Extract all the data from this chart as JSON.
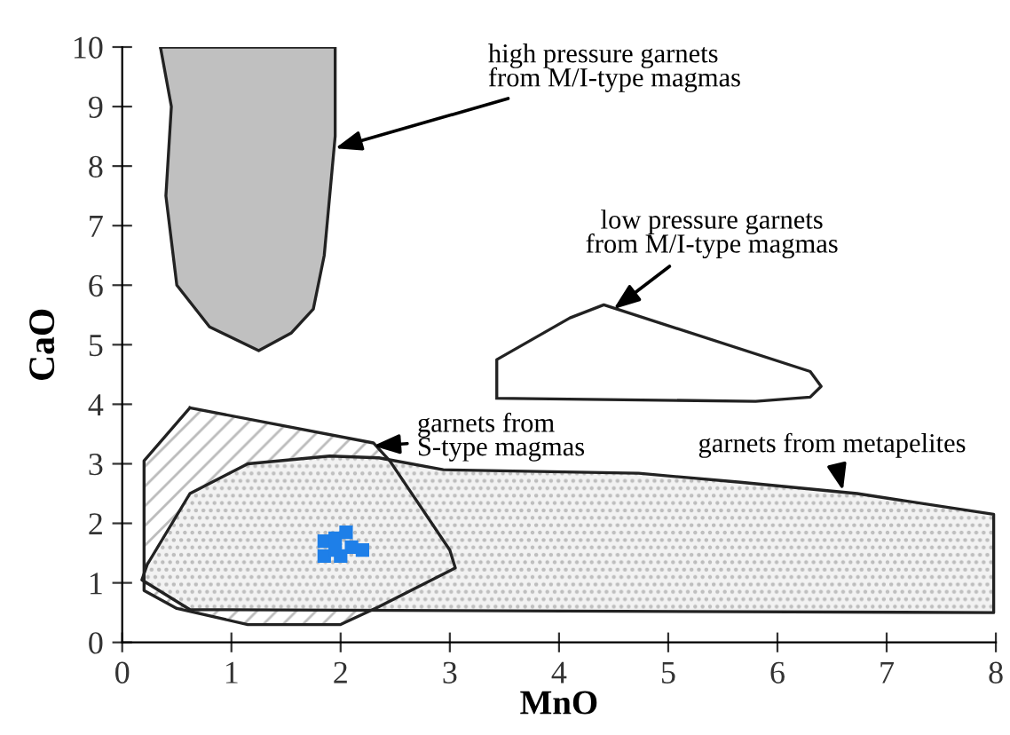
{
  "chart_data": {
    "type": "area",
    "xlabel": "MnO",
    "ylabel": "CaO",
    "xlim": [
      0,
      8
    ],
    "ylim": [
      0,
      10
    ],
    "xticks": [
      0,
      1,
      2,
      3,
      4,
      5,
      6,
      7,
      8
    ],
    "yticks": [
      0,
      1,
      2,
      3,
      4,
      5,
      6,
      7,
      8,
      9,
      10
    ],
    "grid": false,
    "legend": false,
    "series": [
      {
        "color": "#ffffff",
        "x": [
          0.62,
          0.2,
          0.2,
          0.5,
          1.15,
          2.0,
          2.35,
          3.05,
          3.0,
          2.45,
          2.3,
          0.62
        ],
        "values": [
          3.94,
          3.05,
          0.87,
          0.57,
          0.3,
          0.3,
          0.6,
          1.25,
          1.55,
          3.05,
          3.35,
          3.94
        ]
      },
      {
        "color": "#f2f2f2",
        "x": [
          0.23,
          0.62,
          1.15,
          1.9,
          2.35,
          2.94,
          4.73,
          5.66,
          6.73,
          7.98,
          7.98,
          0.62,
          0.18,
          0.23
        ],
        "values": [
          1.31,
          2.5,
          3.0,
          3.13,
          3.1,
          2.9,
          2.84,
          2.69,
          2.5,
          2.15,
          0.5,
          0.55,
          1.05,
          1.31
        ]
      },
      {
        "color": "#c0c0c0",
        "x": [
          0.35,
          1.95,
          1.95,
          1.85,
          1.75,
          1.55,
          1.25,
          0.8,
          0.5,
          0.4,
          0.45,
          0.35
        ],
        "values": [
          10,
          10,
          8.5,
          6.5,
          5.6,
          5.2,
          4.9,
          5.3,
          6,
          7.5,
          9,
          10
        ]
      },
      {
        "color": "#ffffff",
        "x": [
          3.43,
          3.43,
          4.1,
          4.41,
          6.3,
          6.4,
          6.3,
          5.8,
          3.43
        ],
        "values": [
          4.1,
          4.75,
          5.45,
          5.67,
          4.55,
          4.3,
          4.12,
          4.05,
          4.1
        ]
      },
      {
        "type": "scatter",
        "color": "#1e7fe8",
        "marker": "square",
        "x": [
          1.85,
          1.85,
          1.95,
          2.05,
          2.1,
          2.2,
          2.0,
          1.95
        ],
        "values": [
          1.45,
          1.7,
          1.75,
          1.85,
          1.6,
          1.55,
          1.45,
          1.55
        ]
      }
    ],
    "annotations": [
      {
        "text": "high pressure garnets\nfrom M/I-type magmas",
        "x": 1.95,
        "y": 8.3
      },
      {
        "text": "low pressure garnets\nfrom M/I-type magmas",
        "x": 4.5,
        "y": 5.6
      },
      {
        "text": "garnets from\nS-type magmas",
        "x": 2.3,
        "y": 3.3
      },
      {
        "text": "garnets from metapelites",
        "x": 6.6,
        "y": 2.55
      }
    ]
  }
}
